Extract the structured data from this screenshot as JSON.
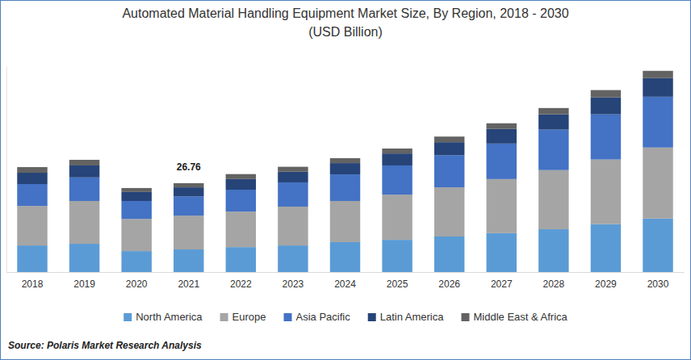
{
  "chart_data": {
    "type": "bar",
    "stacked": true,
    "title": "Automated Material Handling Equipment Market Size, By Region, 2018 - 2030",
    "subtitle": "(USD Billion)",
    "source": "Source: Polaris Market Research Analysis",
    "categories": [
      "2018",
      "2019",
      "2020",
      "2021",
      "2022",
      "2023",
      "2024",
      "2025",
      "2026",
      "2027",
      "2028",
      "2029",
      "2030"
    ],
    "series": [
      {
        "name": "North America",
        "color": "#5b9bd5",
        "values": [
          8.0,
          8.5,
          6.3,
          6.8,
          7.5,
          8.0,
          9.0,
          9.7,
          10.7,
          11.7,
          12.9,
          14.4,
          16.1
        ]
      },
      {
        "name": "Europe",
        "color": "#a5a5a5",
        "values": [
          11.9,
          12.9,
          9.7,
          10.2,
          10.7,
          11.7,
          12.4,
          13.6,
          14.8,
          16.3,
          17.8,
          19.5,
          21.4
        ]
      },
      {
        "name": "Asia Pacific",
        "color": "#4472c4",
        "values": [
          6.6,
          7.1,
          5.4,
          5.8,
          6.6,
          7.3,
          8.0,
          8.8,
          9.7,
          10.7,
          12.2,
          13.6,
          15.3
        ]
      },
      {
        "name": "Latin America",
        "color": "#264478",
        "values": [
          3.4,
          3.6,
          2.7,
          2.7,
          3.2,
          3.2,
          3.4,
          3.6,
          3.9,
          4.4,
          4.6,
          5.1,
          5.6
        ]
      },
      {
        "name": "Middle East & Africa",
        "color": "#636363",
        "values": [
          1.7,
          1.7,
          1.2,
          1.26,
          1.5,
          1.5,
          1.5,
          1.5,
          1.7,
          1.7,
          1.9,
          2.2,
          2.2
        ]
      }
    ],
    "annotations": [
      {
        "text": "26.76",
        "x": "2021",
        "y": 26.76
      }
    ],
    "ylim": [
      0,
      62
    ],
    "yticks": [],
    "tick_labels": "x",
    "grid": false,
    "legend": "bottom"
  }
}
